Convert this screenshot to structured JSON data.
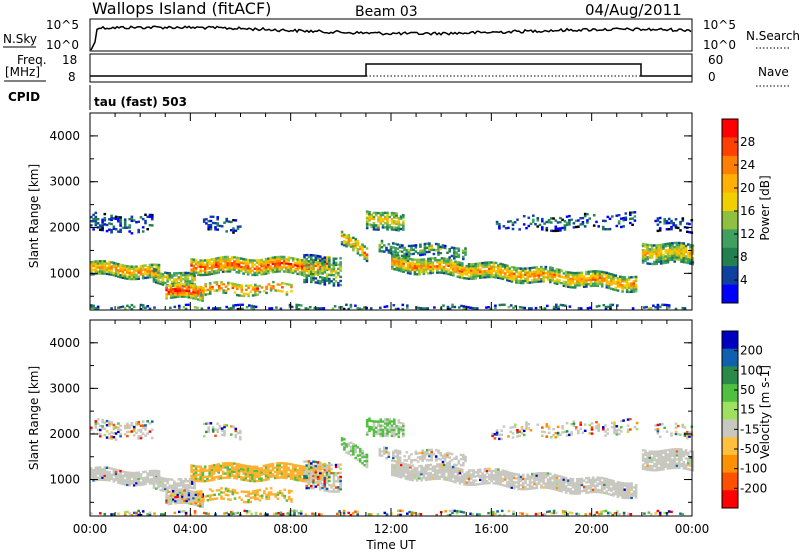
{
  "header": {
    "station": "Wallops Island (fitACF)",
    "beam": "Beam 03",
    "date": "04/Aug/2011"
  },
  "top_panels": {
    "nsky_label": "N.Sky",
    "nsky_ticks": [
      "10^5",
      "10^0"
    ],
    "nsearch_ticks": [
      "10^5",
      "10^0"
    ],
    "nsearch_label": "N.Search",
    "freq_label_top": "Freq.",
    "freq_label_unit": "[MHz]",
    "freq_ticks": [
      "18",
      "8"
    ],
    "nave_ticks": [
      "60",
      "0"
    ],
    "nave_label": "Nave",
    "cpid_label": "CPID",
    "cpid_value": "tau (fast) 503"
  },
  "chart_data": [
    {
      "type": "heatmap",
      "name": "power",
      "ylabel": "Slant Range [km]",
      "yticks": [
        1000,
        2000,
        3000,
        4000
      ],
      "ylim": [
        200,
        4500
      ],
      "xticks": [
        "00:00",
        "04:00",
        "08:00",
        "12:00",
        "16:00",
        "20:00",
        "00:00"
      ],
      "xlim_hours": [
        0,
        24
      ],
      "colorbar": {
        "label": "Power [dB]",
        "ticks": [
          "28",
          "24",
          "20",
          "16",
          "12",
          "8",
          "4"
        ],
        "colors": [
          "#ff0000",
          "#ff4000",
          "#ff8000",
          "#ffb000",
          "#f0d000",
          "#90c040",
          "#40a060",
          "#208050",
          "#1040a0",
          "#0000ff"
        ]
      }
    },
    {
      "type": "heatmap",
      "name": "velocity",
      "ylabel": "Slant Range [km]",
      "yticks": [
        1000,
        2000,
        3000,
        4000
      ],
      "ylim": [
        200,
        4500
      ],
      "xticks": [
        "00:00",
        "04:00",
        "08:00",
        "12:00",
        "16:00",
        "20:00",
        "00:00"
      ],
      "xlabel": "Time UT",
      "colorbar": {
        "label": "Velocity [m s-1]",
        "ticks": [
          "200",
          "100",
          "50",
          "15",
          "-15",
          "-50",
          "-100",
          "-200"
        ],
        "colors": [
          "#0000c0",
          "#1060b0",
          "#2a8a4a",
          "#50c040",
          "#a0e060",
          "#c8c8c0",
          "#ffc040",
          "#ff9000",
          "#ff5000",
          "#ff0000"
        ]
      }
    }
  ],
  "colors": {
    "ground_scatter": "#c8c8c0",
    "frame": "#000000"
  }
}
